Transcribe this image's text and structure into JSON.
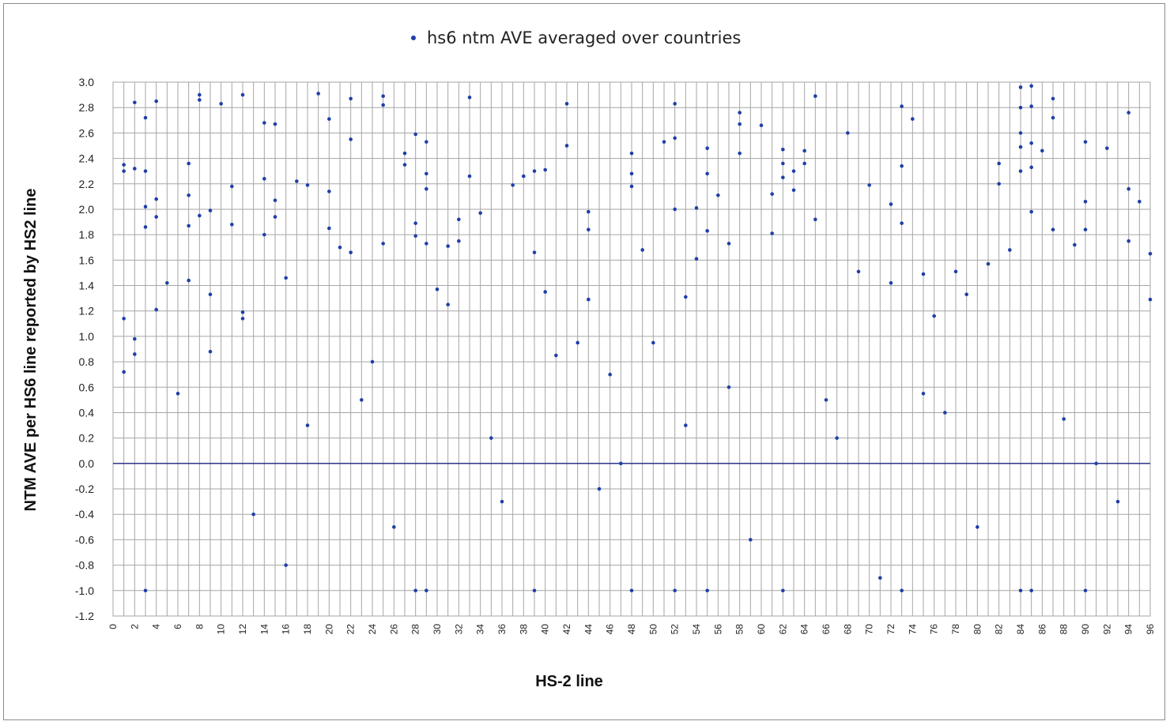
{
  "chart_data": {
    "type": "scatter",
    "title": "",
    "xlabel": "HS-2 line",
    "ylabel": "NTM AVE  per HS6 line reported by HS2 line",
    "xlim": [
      0,
      96
    ],
    "ylim": [
      -1.2,
      3.0
    ],
    "grid": true,
    "legend_placement": "top-center",
    "x_ticks": [
      "0",
      "2",
      "4",
      "6",
      "8",
      "10",
      "12",
      "14",
      "16",
      "18",
      "20",
      "22",
      "24",
      "26",
      "28",
      "30",
      "32",
      "34",
      "36",
      "38",
      "40",
      "42",
      "44",
      "46",
      "48",
      "50",
      "52",
      "54",
      "56",
      "58",
      "60",
      "62",
      "64",
      "66",
      "68",
      "70",
      "72",
      "74",
      "76",
      "78",
      "80",
      "82",
      "84",
      "86",
      "88",
      "90",
      "92",
      "94",
      "96"
    ],
    "y_ticks": [
      "3.0",
      "2.8",
      "2.6",
      "2.4",
      "2.2",
      "2.0",
      "1.8",
      "1.6",
      "1.4",
      "1.2",
      "1.0",
      "0.8",
      "0.6",
      "0.4",
      "0.2",
      "0.0",
      "-0.2",
      "-0.4",
      "-0.6",
      "-0.8",
      "-1.0",
      "-1.2"
    ],
    "series": [
      {
        "name": "hs6 ntm AVE averaged over countries",
        "color": "#1f3fa8",
        "x": [
          1,
          1,
          1,
          1,
          2,
          2,
          2,
          2,
          3,
          3,
          3,
          3,
          4,
          4,
          4,
          4,
          7,
          7,
          7,
          7,
          8,
          8,
          8,
          9,
          9,
          10,
          11,
          11,
          12,
          12,
          12,
          14,
          14,
          14,
          15,
          15,
          15,
          16,
          17,
          18,
          19,
          20,
          20,
          20,
          21,
          22,
          22,
          22,
          25,
          25,
          25,
          27,
          27,
          28,
          28,
          28,
          29,
          29,
          29,
          29,
          30,
          31,
          32,
          32,
          33,
          33,
          34,
          37,
          38,
          39,
          39,
          40,
          40,
          42,
          42,
          44,
          44,
          44,
          48,
          48,
          48,
          49,
          51,
          52,
          52,
          52,
          53,
          54,
          54,
          55,
          55,
          55,
          56,
          57,
          58,
          58,
          58,
          60,
          61,
          61,
          62,
          62,
          62,
          63,
          63,
          64,
          64,
          65,
          65,
          68,
          69,
          70,
          72,
          72,
          73,
          73,
          73,
          74,
          75,
          76,
          78,
          79,
          81,
          82,
          82,
          83,
          84,
          84,
          84,
          84,
          84,
          85,
          85,
          85,
          85,
          85,
          86,
          87,
          87,
          87,
          89,
          90,
          90,
          90,
          92,
          94,
          94,
          94,
          95,
          96,
          96,
          3,
          28,
          29,
          39,
          48,
          52,
          55,
          62,
          73,
          84,
          85,
          90,
          5,
          6,
          9,
          13,
          16,
          18,
          23,
          24,
          26,
          31,
          35,
          36,
          41,
          43,
          45,
          46,
          47,
          50,
          53,
          57,
          59,
          66,
          67,
          71,
          75,
          77,
          80,
          88,
          91,
          93
        ],
        "y": [
          2.35,
          2.3,
          1.14,
          0.72,
          2.84,
          2.32,
          0.98,
          0.86,
          2.72,
          2.3,
          2.02,
          1.86,
          2.85,
          2.08,
          1.94,
          1.21,
          2.36,
          2.11,
          1.87,
          1.44,
          2.9,
          2.86,
          1.95,
          1.99,
          1.33,
          2.83,
          2.18,
          1.88,
          2.9,
          1.19,
          1.14,
          2.68,
          2.24,
          1.8,
          2.67,
          2.07,
          1.94,
          1.46,
          2.22,
          2.19,
          2.91,
          2.71,
          2.14,
          1.85,
          1.7,
          2.87,
          2.55,
          1.66,
          2.89,
          2.82,
          1.73,
          2.44,
          2.35,
          2.59,
          1.89,
          1.79,
          2.53,
          2.28,
          2.16,
          1.73,
          1.37,
          1.71,
          1.92,
          1.75,
          2.88,
          2.26,
          1.97,
          2.19,
          2.26,
          2.3,
          1.66,
          2.31,
          1.35,
          2.83,
          2.5,
          1.98,
          1.84,
          1.29,
          2.44,
          2.28,
          2.18,
          1.68,
          2.53,
          2.83,
          2.56,
          2.0,
          1.31,
          2.01,
          1.61,
          2.48,
          2.28,
          1.83,
          2.11,
          1.73,
          2.76,
          2.67,
          2.44,
          2.66,
          2.12,
          1.81,
          2.47,
          2.36,
          2.25,
          2.3,
          2.15,
          2.46,
          2.36,
          2.89,
          1.92,
          2.6,
          1.51,
          2.19,
          2.04,
          1.42,
          2.81,
          2.34,
          1.89,
          2.71,
          1.49,
          1.16,
          1.51,
          1.33,
          1.57,
          2.36,
          2.2,
          1.68,
          2.96,
          2.8,
          2.6,
          2.49,
          2.3,
          2.97,
          2.81,
          2.52,
          2.33,
          1.98,
          2.46,
          2.87,
          2.72,
          1.84,
          1.72,
          2.53,
          2.06,
          1.84,
          2.48,
          2.76,
          2.16,
          1.75,
          2.06,
          1.65,
          1.29,
          -1.0,
          -1.0,
          -1.0,
          -1.0,
          -1.0,
          -1.0,
          -1.0,
          -1.0,
          -1.0,
          -1.0,
          -1.0,
          -1.0,
          1.42,
          0.55,
          0.88,
          -0.4,
          -0.8,
          0.3,
          0.5,
          0.8,
          -0.5,
          1.25,
          0.2,
          -0.3,
          0.85,
          0.95,
          -0.2,
          0.7,
          0.0,
          0.95,
          0.3,
          0.6,
          -0.6,
          0.5,
          0.2,
          -0.9,
          0.55,
          0.4,
          -0.5,
          0.35,
          0.0,
          -0.3
        ]
      }
    ]
  }
}
